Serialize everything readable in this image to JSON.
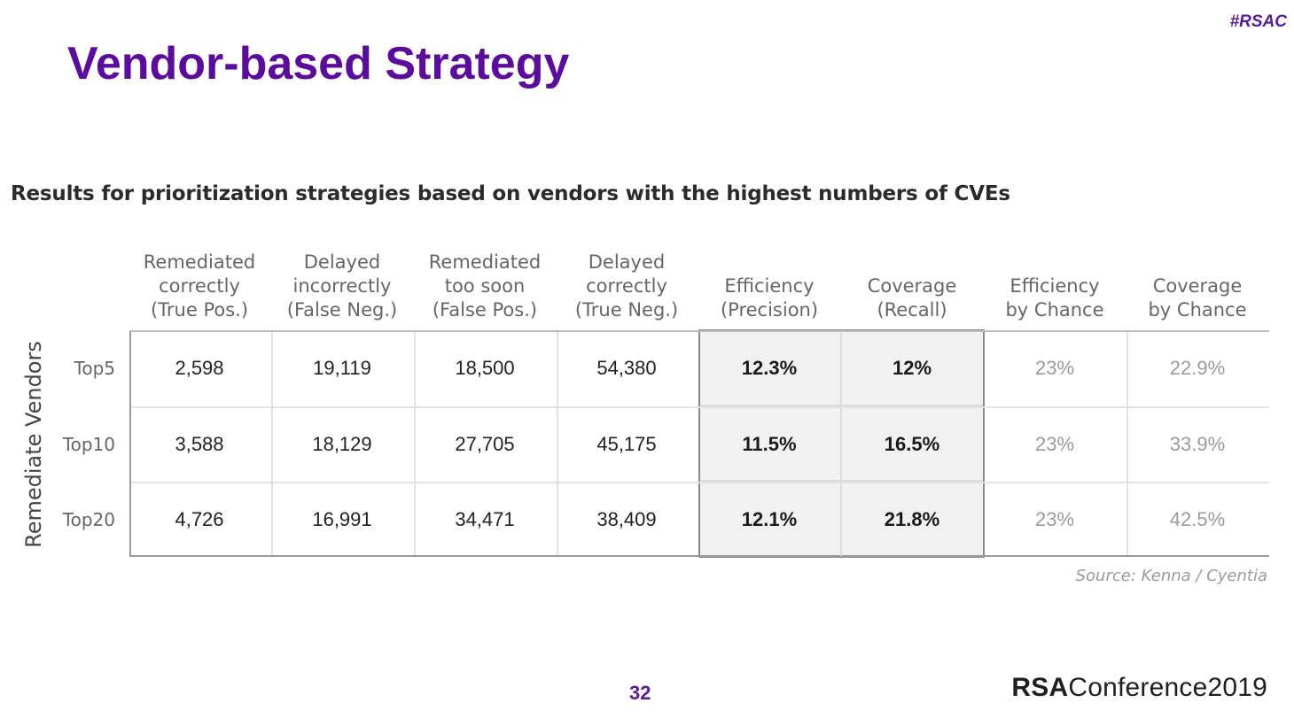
{
  "hashtag": "#RSAC",
  "title": "Vendor-based Strategy",
  "subtitle": "Results for prioritization strategies based on vendors with the highest numbers of CVEs",
  "table": {
    "row_group_label": "Remediate Vendors",
    "columns": [
      [
        "Remediated",
        "correctly",
        "(True Pos.)"
      ],
      [
        "Delayed",
        "incorrectly",
        "(False Neg.)"
      ],
      [
        "Remediated",
        "too soon",
        "(False Pos.)"
      ],
      [
        "Delayed",
        "correctly",
        "(True Neg.)"
      ],
      [
        "Efficiency",
        "(Precision)"
      ],
      [
        "Coverage",
        "(Recall)"
      ],
      [
        "Efficiency",
        "by Chance"
      ],
      [
        "Coverage",
        "by Chance"
      ]
    ],
    "rows": [
      {
        "label": "Top5",
        "cells": [
          "2,598",
          "19,119",
          "18,500",
          "54,380",
          "12.3%",
          "12%",
          "23%",
          "22.9%"
        ]
      },
      {
        "label": "Top10",
        "cells": [
          "3,588",
          "18,129",
          "27,705",
          "45,175",
          "11.5%",
          "16.5%",
          "23%",
          "33.9%"
        ]
      },
      {
        "label": "Top20",
        "cells": [
          "4,726",
          "16,991",
          "34,471",
          "38,409",
          "12.1%",
          "21.8%",
          "23%",
          "42.5%"
        ]
      }
    ]
  },
  "source": "Source: Kenna / Cyentia",
  "page_number": "32",
  "logo": {
    "bold": "RSA",
    "rest": "Conference2019"
  }
}
